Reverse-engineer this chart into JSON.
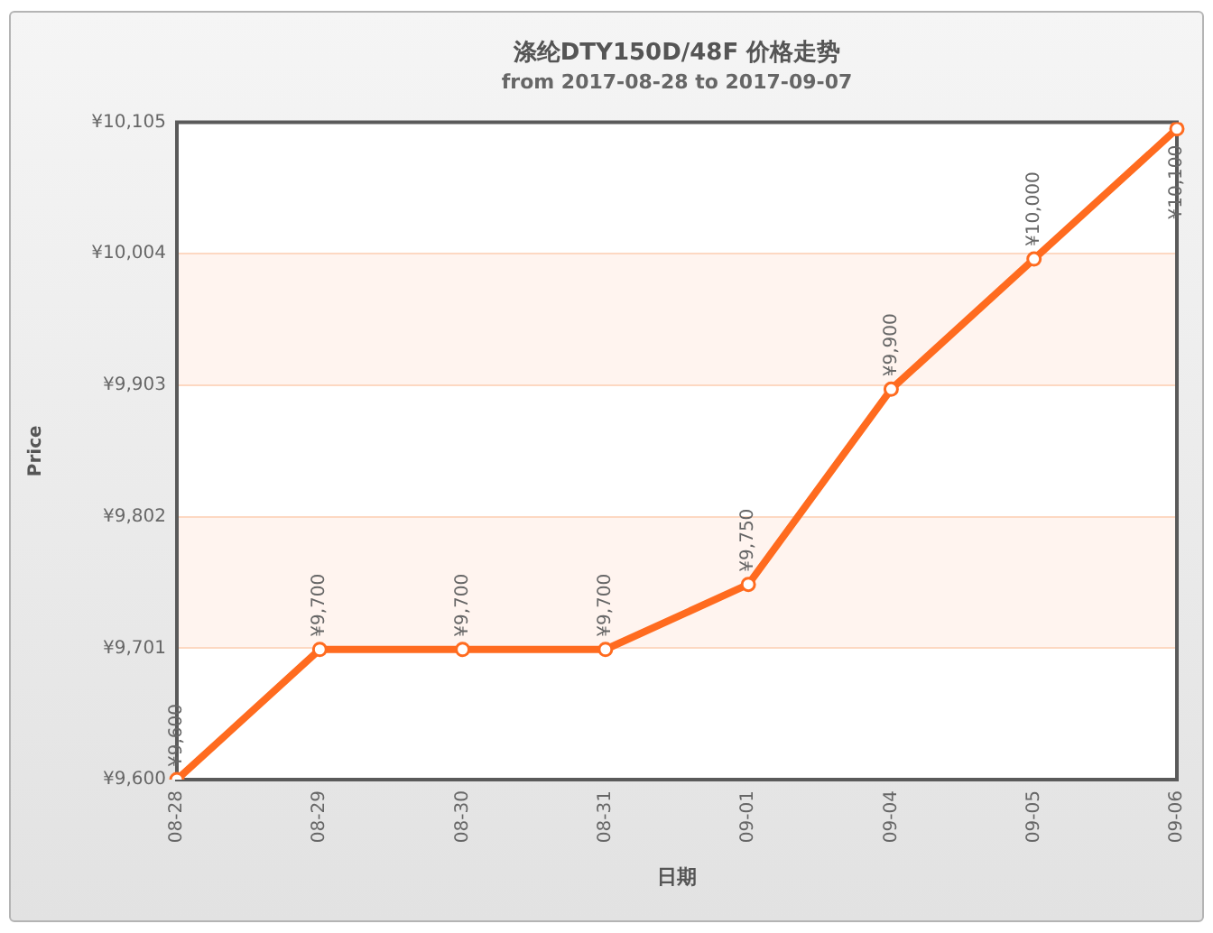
{
  "chart_data": {
    "type": "line",
    "title": "涤纶DTY150D/48F 价格走势",
    "subtitle": "from 2017-08-28 to 2017-09-07",
    "xlabel": "日期",
    "ylabel": "Price",
    "categories": [
      "08-28",
      "08-29",
      "08-30",
      "08-31",
      "09-01",
      "09-04",
      "09-05",
      "09-06"
    ],
    "series": [
      {
        "color": "#ff6b1f",
        "values": [
          9600,
          9700,
          9700,
          9700,
          9750,
          9900,
          10000,
          10100
        ],
        "value_labels": [
          "¥9,600",
          "¥9,700",
          "¥9,700",
          "¥9,700",
          "¥9,750",
          "¥9,900",
          "¥10,000",
          "¥10,100"
        ]
      }
    ],
    "ylim": [
      9600,
      10105
    ],
    "yticks": [
      {
        "value": 9600,
        "label": "¥9,600"
      },
      {
        "value": 9701,
        "label": "¥9,701"
      },
      {
        "value": 9802,
        "label": "¥9,802"
      },
      {
        "value": 9903,
        "label": "¥9,903"
      },
      {
        "value": 10004,
        "label": "¥10,004"
      },
      {
        "value": 10105,
        "label": "¥10,105"
      }
    ],
    "grid": "y",
    "bands": [
      {
        "axis": "y",
        "from": 9701,
        "to": 9802,
        "color": "#fff4ef"
      },
      {
        "axis": "y",
        "from": 9903,
        "to": 10004,
        "color": "#fff4ef"
      }
    ],
    "marker": "circle",
    "line_style": "solid"
  }
}
